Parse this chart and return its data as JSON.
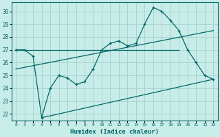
{
  "xlabel": "Humidex (Indice chaleur)",
  "bg_color": "#c8ece8",
  "grid_color": "#a8d4d0",
  "line_color": "#006666",
  "xlim": [
    -0.5,
    23.5
  ],
  "ylim": [
    21.5,
    30.7
  ],
  "xticks": [
    0,
    1,
    2,
    3,
    4,
    5,
    6,
    7,
    8,
    9,
    10,
    11,
    12,
    13,
    14,
    15,
    16,
    17,
    18,
    19,
    20,
    21,
    22,
    23
  ],
  "yticks": [
    22,
    23,
    24,
    25,
    26,
    27,
    28,
    29,
    30
  ],
  "main_x": [
    0,
    1,
    2,
    3,
    4,
    5,
    6,
    7,
    8,
    9,
    10,
    11,
    12,
    13,
    14,
    15,
    16,
    17,
    18,
    19,
    20,
    21,
    22,
    23
  ],
  "main_y": [
    27.0,
    27.0,
    26.5,
    21.7,
    24.0,
    25.0,
    24.8,
    24.3,
    24.5,
    25.5,
    27.0,
    27.5,
    27.7,
    27.3,
    27.5,
    29.0,
    30.3,
    30.0,
    29.3,
    28.5,
    27.0,
    26.0,
    25.0,
    24.7
  ],
  "trend1_x": [
    0,
    19
  ],
  "trend1_y": [
    27.0,
    27.0
  ],
  "trend2_x": [
    0,
    23
  ],
  "trend2_y": [
    25.5,
    28.5
  ],
  "trend3_x": [
    3,
    23
  ],
  "trend3_y": [
    21.7,
    24.7
  ]
}
